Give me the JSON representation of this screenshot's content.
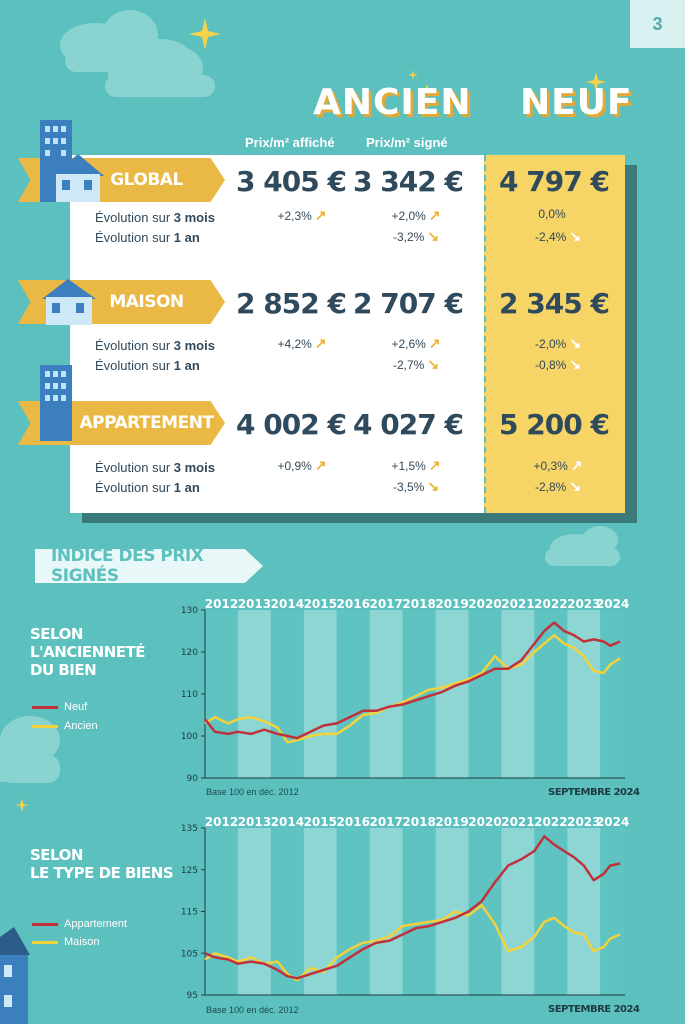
{
  "page_number": "3",
  "headers": {
    "ancien": "ANCIEN",
    "neuf": "NEUF",
    "prix_affiche": "Prix/m² affiché",
    "prix_signe": "Prix/m² signé"
  },
  "labels": {
    "evo_3m_prefix": "Évolution sur ",
    "evo_3m_bold": "3 mois",
    "evo_1a_prefix": "Évolution sur ",
    "evo_1a_bold": "1 an"
  },
  "rows": [
    {
      "name": "GLOBAL",
      "affiche": "3 405 €",
      "signe": "3 342 €",
      "neuf": "4 797 €",
      "affiche_3m": "+2,3%",
      "signe_3m": "+2,0%",
      "signe_1a": "-3,2%",
      "neuf_3m": "0,0%",
      "neuf_1a": "-2,4%"
    },
    {
      "name": "MAISON",
      "affiche": "2 852 €",
      "signe": "2 707 €",
      "neuf": "2 345 €",
      "affiche_3m": "+4,2%",
      "signe_3m": "+2,6%",
      "signe_1a": "-2,7%",
      "neuf_3m": "-2,0%",
      "neuf_1a": "-0,8%"
    },
    {
      "name": "APPARTEMENT",
      "affiche": "4 002 €",
      "signe": "4 027 €",
      "neuf": "5 200 €",
      "affiche_3m": "+0,9%",
      "signe_3m": "+1,5%",
      "signe_1a": "-3,5%",
      "neuf_3m": "+0,3%",
      "neuf_1a": "-2,8%"
    }
  ],
  "section_title": "INDICE DES PRIX SIGNÉS",
  "colors": {
    "red": "#c0313b",
    "yellow": "#f3d23c"
  },
  "chart_data": [
    {
      "type": "line",
      "title_lines": [
        "SELON",
        "L'ANCIENNETÉ",
        "DU BIEN"
      ],
      "years": [
        "2012",
        "2013",
        "2014",
        "2015",
        "2016",
        "2017",
        "2018",
        "2019",
        "2020",
        "2021",
        "2022",
        "2023",
        "2024"
      ],
      "ylim": [
        90,
        130
      ],
      "yticks": [
        90,
        100,
        110,
        120,
        130
      ],
      "note": "Base 100 en déc. 2012",
      "date": "SEPTEMBRE 2024",
      "series": [
        {
          "name": "Neuf",
          "color": "#c0313b",
          "points": [
            [
              2012.0,
              104
            ],
            [
              2012.3,
              101
            ],
            [
              2012.7,
              100.5
            ],
            [
              2013.0,
              101
            ],
            [
              2013.4,
              100.5
            ],
            [
              2013.8,
              101.5
            ],
            [
              2014.2,
              100.5
            ],
            [
              2014.5,
              100
            ],
            [
              2014.8,
              99.5
            ],
            [
              2015.2,
              101
            ],
            [
              2015.6,
              102.5
            ],
            [
              2016.0,
              103
            ],
            [
              2016.4,
              104.5
            ],
            [
              2016.8,
              106
            ],
            [
              2017.2,
              106
            ],
            [
              2017.6,
              107
            ],
            [
              2018.0,
              107.5
            ],
            [
              2018.4,
              108.5
            ],
            [
              2018.8,
              109.5
            ],
            [
              2019.2,
              110.5
            ],
            [
              2019.6,
              112
            ],
            [
              2020.0,
              113
            ],
            [
              2020.4,
              114.5
            ],
            [
              2020.8,
              116
            ],
            [
              2021.2,
              116
            ],
            [
              2021.6,
              118
            ],
            [
              2022.0,
              122
            ],
            [
              2022.3,
              125
            ],
            [
              2022.6,
              127
            ],
            [
              2022.9,
              125
            ],
            [
              2023.2,
              124
            ],
            [
              2023.5,
              122.5
            ],
            [
              2023.8,
              123
            ],
            [
              2024.1,
              122.5
            ],
            [
              2024.3,
              121.5
            ],
            [
              2024.6,
              122.5
            ]
          ]
        },
        {
          "name": "Ancien",
          "color": "#f3d23c",
          "points": [
            [
              2012.0,
              103
            ],
            [
              2012.3,
              104.5
            ],
            [
              2012.7,
              103
            ],
            [
              2013.0,
              104
            ],
            [
              2013.4,
              104.5
            ],
            [
              2013.8,
              103.5
            ],
            [
              2014.2,
              102
            ],
            [
              2014.5,
              98.5
            ],
            [
              2014.8,
              99
            ],
            [
              2015.2,
              100
            ],
            [
              2015.6,
              100.5
            ],
            [
              2016.0,
              100.5
            ],
            [
              2016.4,
              102.5
            ],
            [
              2016.8,
              105
            ],
            [
              2017.2,
              105.5
            ],
            [
              2017.6,
              107
            ],
            [
              2018.0,
              108
            ],
            [
              2018.4,
              109.5
            ],
            [
              2018.8,
              111
            ],
            [
              2019.2,
              111.5
            ],
            [
              2019.6,
              112.5
            ],
            [
              2020.0,
              113.5
            ],
            [
              2020.4,
              115
            ],
            [
              2020.8,
              119
            ],
            [
              2021.2,
              116
            ],
            [
              2021.6,
              117
            ],
            [
              2022.0,
              120
            ],
            [
              2022.3,
              122
            ],
            [
              2022.6,
              124
            ],
            [
              2022.9,
              122
            ],
            [
              2023.2,
              121
            ],
            [
              2023.5,
              119
            ],
            [
              2023.8,
              115.5
            ],
            [
              2024.1,
              115
            ],
            [
              2024.3,
              117
            ],
            [
              2024.6,
              118.5
            ]
          ]
        }
      ]
    },
    {
      "type": "line",
      "title_lines": [
        "SELON",
        "LE TYPE DE BIENS"
      ],
      "years": [
        "2012",
        "2013",
        "2014",
        "2015",
        "2016",
        "2017",
        "2018",
        "2019",
        "2020",
        "2021",
        "2022",
        "2023",
        "2024"
      ],
      "ylim": [
        95,
        135
      ],
      "yticks": [
        95,
        105,
        115,
        125,
        135
      ],
      "note": "Base 100 en déc. 2012",
      "date": "SEPTEMBRE 2024",
      "series": [
        {
          "name": "Appartement",
          "color": "#c0313b",
          "points": [
            [
              2012.0,
              105
            ],
            [
              2012.3,
              104
            ],
            [
              2012.7,
              103.5
            ],
            [
              2013.0,
              102.5
            ],
            [
              2013.4,
              103
            ],
            [
              2013.8,
              102.5
            ],
            [
              2014.2,
              101
            ],
            [
              2014.5,
              99.5
            ],
            [
              2014.8,
              99
            ],
            [
              2015.2,
              100
            ],
            [
              2015.6,
              101
            ],
            [
              2016.0,
              102
            ],
            [
              2016.4,
              104
            ],
            [
              2016.8,
              106
            ],
            [
              2017.2,
              107.5
            ],
            [
              2017.6,
              108
            ],
            [
              2018.0,
              109.5
            ],
            [
              2018.4,
              111
            ],
            [
              2018.8,
              111.5
            ],
            [
              2019.2,
              112.5
            ],
            [
              2019.6,
              113.5
            ],
            [
              2020.0,
              115
            ],
            [
              2020.4,
              117.5
            ],
            [
              2020.8,
              122
            ],
            [
              2021.2,
              126
            ],
            [
              2021.6,
              127.5
            ],
            [
              2022.0,
              129.5
            ],
            [
              2022.3,
              133
            ],
            [
              2022.6,
              131
            ],
            [
              2022.9,
              129.5
            ],
            [
              2023.2,
              128
            ],
            [
              2023.5,
              126
            ],
            [
              2023.8,
              122.5
            ],
            [
              2024.1,
              124
            ],
            [
              2024.3,
              126
            ],
            [
              2024.6,
              126.5
            ]
          ]
        },
        {
          "name": "Maison",
          "color": "#f3d23c",
          "points": [
            [
              2012.0,
              103.5
            ],
            [
              2012.3,
              105
            ],
            [
              2012.7,
              104
            ],
            [
              2013.0,
              103
            ],
            [
              2013.4,
              104
            ],
            [
              2013.8,
              102.5
            ],
            [
              2014.2,
              103
            ],
            [
              2014.5,
              100
            ],
            [
              2014.8,
              98.5
            ],
            [
              2015.2,
              101.5
            ],
            [
              2015.6,
              100.5
            ],
            [
              2016.0,
              104
            ],
            [
              2016.4,
              106
            ],
            [
              2016.8,
              107.5
            ],
            [
              2017.2,
              108
            ],
            [
              2017.6,
              109
            ],
            [
              2018.0,
              111.5
            ],
            [
              2018.4,
              112
            ],
            [
              2018.8,
              112.5
            ],
            [
              2019.2,
              113
            ],
            [
              2019.6,
              115
            ],
            [
              2020.0,
              114
            ],
            [
              2020.4,
              116.5
            ],
            [
              2020.8,
              112
            ],
            [
              2021.2,
              105.5
            ],
            [
              2021.6,
              106.5
            ],
            [
              2022.0,
              109
            ],
            [
              2022.3,
              112.5
            ],
            [
              2022.6,
              113.5
            ],
            [
              2022.9,
              111.5
            ],
            [
              2023.2,
              110
            ],
            [
              2023.5,
              109.5
            ],
            [
              2023.8,
              105.5
            ],
            [
              2024.1,
              106.5
            ],
            [
              2024.3,
              108.5
            ],
            [
              2024.6,
              109.5
            ]
          ]
        }
      ]
    }
  ]
}
